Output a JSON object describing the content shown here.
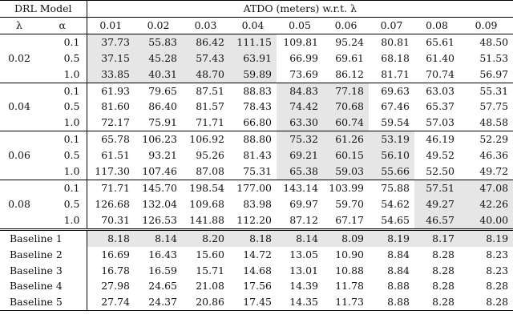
{
  "header": {
    "drl_model": "DRL Model",
    "atdo_caption": "ATDO (meters) w.r.t. λ",
    "lambda_col": "λ",
    "alpha_col": "α",
    "lambdas": [
      "0.01",
      "0.02",
      "0.03",
      "0.04",
      "0.05",
      "0.06",
      "0.07",
      "0.08",
      "0.09"
    ]
  },
  "shade_color": "#e6e6e6",
  "groups": [
    {
      "lambda": "0.02",
      "rows": [
        {
          "alpha": "0.1",
          "values": [
            "37.73",
            "55.83",
            "86.42",
            "111.15",
            "109.81",
            "95.24",
            "80.81",
            "65.61",
            "48.50"
          ],
          "shaded": [
            0,
            1,
            2,
            3
          ]
        },
        {
          "alpha": "0.5",
          "values": [
            "37.15",
            "45.28",
            "57.43",
            "63.91",
            "66.99",
            "69.61",
            "68.18",
            "61.40",
            "51.53"
          ],
          "shaded": [
            0,
            1,
            2,
            3
          ]
        },
        {
          "alpha": "1.0",
          "values": [
            "33.85",
            "40.31",
            "48.70",
            "59.89",
            "73.69",
            "86.12",
            "81.71",
            "70.74",
            "56.97"
          ],
          "shaded": [
            0,
            1,
            2,
            3
          ]
        }
      ]
    },
    {
      "lambda": "0.04",
      "rows": [
        {
          "alpha": "0.1",
          "values": [
            "61.93",
            "79.65",
            "87.51",
            "88.83",
            "84.83",
            "77.18",
            "69.63",
            "63.03",
            "55.31"
          ],
          "shaded": [
            4,
            5
          ]
        },
        {
          "alpha": "0.5",
          "values": [
            "81.60",
            "86.40",
            "81.57",
            "78.43",
            "74.42",
            "70.68",
            "67.46",
            "65.37",
            "57.75"
          ],
          "shaded": [
            4,
            5
          ]
        },
        {
          "alpha": "1.0",
          "values": [
            "72.17",
            "75.91",
            "71.71",
            "66.80",
            "63.30",
            "60.74",
            "59.54",
            "57.03",
            "48.58"
          ],
          "shaded": [
            4,
            5
          ]
        }
      ]
    },
    {
      "lambda": "0.06",
      "rows": [
        {
          "alpha": "0.1",
          "values": [
            "65.78",
            "106.23",
            "106.92",
            "88.80",
            "75.32",
            "61.26",
            "53.19",
            "46.19",
            "52.29"
          ],
          "shaded": [
            4,
            5,
            6
          ]
        },
        {
          "alpha": "0.5",
          "values": [
            "61.51",
            "93.21",
            "95.26",
            "81.43",
            "69.21",
            "60.15",
            "56.10",
            "49.52",
            "46.36"
          ],
          "shaded": [
            4,
            5,
            6
          ]
        },
        {
          "alpha": "1.0",
          "values": [
            "117.30",
            "107.46",
            "87.08",
            "75.31",
            "65.38",
            "59.03",
            "55.66",
            "52.50",
            "49.72"
          ],
          "shaded": [
            4,
            5,
            6
          ]
        }
      ]
    },
    {
      "lambda": "0.08",
      "rows": [
        {
          "alpha": "0.1",
          "values": [
            "71.71",
            "145.70",
            "198.54",
            "177.00",
            "143.14",
            "103.99",
            "75.88",
            "57.51",
            "47.08"
          ],
          "shaded": [
            7,
            8
          ]
        },
        {
          "alpha": "0.5",
          "values": [
            "126.68",
            "132.04",
            "109.68",
            "83.98",
            "69.97",
            "59.70",
            "54.62",
            "49.27",
            "42.26"
          ],
          "shaded": [
            7,
            8
          ]
        },
        {
          "alpha": "1.0",
          "values": [
            "70.31",
            "126.53",
            "141.88",
            "112.20",
            "87.12",
            "67.17",
            "54.65",
            "46.57",
            "40.00"
          ],
          "shaded": [
            7,
            8
          ]
        }
      ]
    }
  ],
  "baselines": [
    {
      "name": "Baseline 1",
      "values": [
        "8.18",
        "8.14",
        "8.20",
        "8.18",
        "8.14",
        "8.09",
        "8.19",
        "8.17",
        "8.19"
      ],
      "shaded": true
    },
    {
      "name": "Baseline 2",
      "values": [
        "16.69",
        "16.43",
        "15.60",
        "14.72",
        "13.05",
        "10.90",
        "8.84",
        "8.28",
        "8.23"
      ],
      "shaded": false
    },
    {
      "name": "Baseline 3",
      "values": [
        "16.78",
        "16.59",
        "15.71",
        "14.68",
        "13.01",
        "10.88",
        "8.84",
        "8.28",
        "8.23"
      ],
      "shaded": false
    },
    {
      "name": "Baseline 4",
      "values": [
        "27.98",
        "24.65",
        "21.08",
        "17.56",
        "14.39",
        "11.78",
        "8.88",
        "8.28",
        "8.28"
      ],
      "shaded": false
    },
    {
      "name": "Baseline 5",
      "values": [
        "27.74",
        "24.37",
        "20.86",
        "17.45",
        "14.35",
        "11.73",
        "8.88",
        "8.28",
        "8.28"
      ],
      "shaded": false
    }
  ]
}
